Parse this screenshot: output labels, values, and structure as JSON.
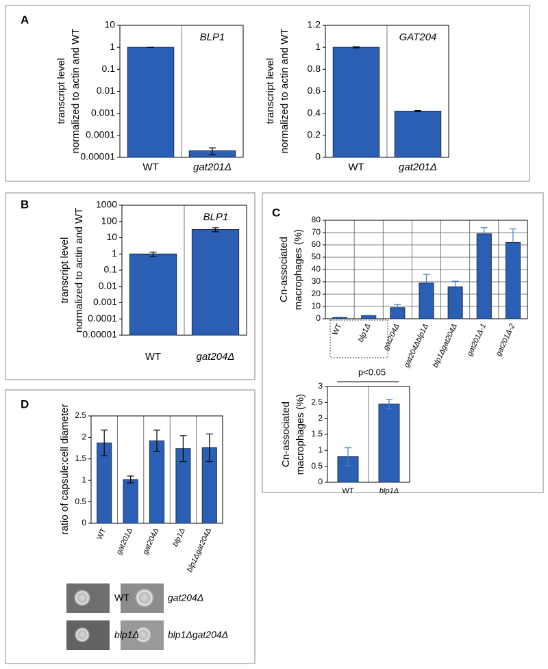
{
  "panel_labels": [
    "A",
    "B",
    "C",
    "D"
  ],
  "capsule_images": {
    "labels": [
      "WT",
      "gat204Δ",
      "blp1Δ",
      "blp1Δgat204Δ"
    ]
  },
  "chart_data": [
    {
      "type": "bar",
      "log": true,
      "annotation": "BLP1",
      "ylabel": [
        "transcript level",
        "normalized to actin and WT"
      ],
      "categories": [
        "WT",
        "gat201Δ"
      ],
      "series": [
        {
          "color": "#2b5fb3",
          "values": [
            1,
            2e-05
          ],
          "errors": [
            0,
            7e-06
          ]
        }
      ],
      "ylim": [
        1e-05,
        10
      ],
      "yticks": [
        {
          "value": 1e-05,
          "label": "0.00001"
        },
        0.0001,
        0.001,
        0.01,
        0.1,
        1,
        10
      ],
      "grid": false,
      "error_color": "#000000",
      "error_bars": "both"
    },
    {
      "type": "bar",
      "log": false,
      "annotation": "GAT204",
      "ylabel": [
        "transcript level",
        "normalized to actin and WT"
      ],
      "categories": [
        "WT",
        "gat201Δ"
      ],
      "series": [
        {
          "color": "#2b5fb3",
          "values": [
            1,
            0.42
          ],
          "errors": [
            0.005,
            0.005
          ]
        }
      ],
      "ylim": [
        0,
        1.2
      ],
      "yticks": [
        0,
        0.2,
        0.4,
        0.6,
        0.8,
        1,
        1.2
      ],
      "grid": false,
      "error_color": "#000000",
      "error_bars": "both"
    },
    {
      "type": "bar",
      "log": true,
      "annotation": "BLP1",
      "ylabel": [
        "transcript level",
        "normalized to actin and WT"
      ],
      "categories": [
        "WT",
        "gat204Δ"
      ],
      "series": [
        {
          "color": "#2b5fb3",
          "values": [
            1,
            32
          ],
          "errors": [
            0.3,
            9
          ]
        }
      ],
      "ylim": [
        1e-05,
        1000
      ],
      "yticks": [
        {
          "value": 1e-05,
          "label": "0.00001"
        },
        0.0001,
        0.001,
        0.01,
        0.1,
        1,
        10,
        100,
        1000
      ],
      "grid": false,
      "error_color": "#000000",
      "error_bars": "both"
    },
    {
      "type": "bar",
      "log": false,
      "ylabel": [
        "Cn-associated",
        "macrophages (%)"
      ],
      "categories": [
        "WT",
        "blp1Δ",
        "gat204Δ",
        "gat204Δblp1Δ",
        "blp1Δgat204Δ",
        "gat201Δ-1",
        "gat201Δ-2"
      ],
      "series": [
        {
          "color": "#2b5fb3",
          "values": [
            1,
            2.5,
            9,
            29,
            26,
            69,
            62
          ],
          "errors": [
            0.3,
            0.3,
            2.5,
            7,
            4.5,
            5,
            11
          ]
        }
      ],
      "ylim": [
        0,
        80
      ],
      "yticks": [
        0,
        10,
        20,
        30,
        40,
        50,
        60,
        70,
        80
      ],
      "grid": true,
      "error_color": "#3f7fcf",
      "error_bars": "upper"
    },
    {
      "type": "bar",
      "log": false,
      "annotation": "p<0.05",
      "ylabel": [
        "Cn-associated",
        "macrophages (%)"
      ],
      "categories": [
        "WT",
        "blp1Δ"
      ],
      "series": [
        {
          "color": "#2b5fb3",
          "values": [
            0.8,
            2.45
          ],
          "errors": [
            0.28,
            0.15
          ]
        }
      ],
      "ylim": [
        0,
        3
      ],
      "yticks": [
        0,
        0.5,
        1,
        1.5,
        2,
        2.5,
        3
      ],
      "grid": false,
      "error_color": "#3f7fcf",
      "error_bars": "both"
    },
    {
      "type": "bar",
      "log": false,
      "ylabel": [
        "ratio of capsule:cell diameter"
      ],
      "categories": [
        "WT",
        "gat201Δ",
        "gat204Δ",
        "blp1Δ",
        "blp1Δgat204Δ"
      ],
      "series": [
        {
          "color": "#2b5fb3",
          "values": [
            1.87,
            1.02,
            1.92,
            1.74,
            1.76
          ],
          "errors": [
            0.3,
            0.08,
            0.25,
            0.3,
            0.32
          ]
        }
      ],
      "ylim": [
        0,
        2.5
      ],
      "yticks": [
        0,
        0.5,
        1,
        1.5,
        2,
        2.5
      ],
      "grid": false,
      "error_color": "#000000",
      "error_bars": "both"
    }
  ]
}
